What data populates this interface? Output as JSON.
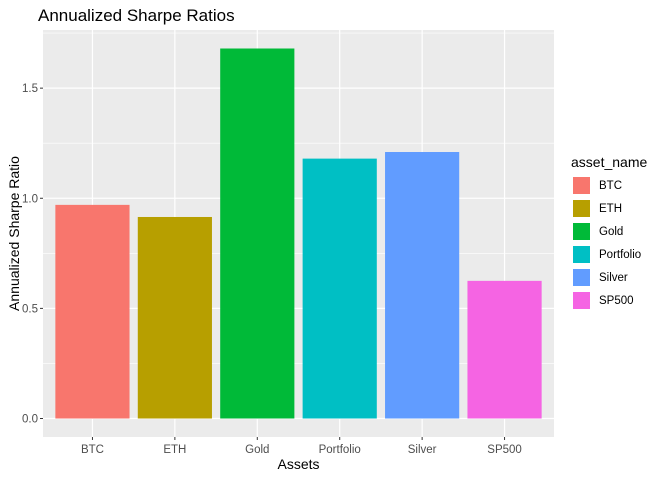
{
  "chart_data": {
    "type": "bar",
    "title": "Annualized Sharpe Ratios",
    "xlabel": "Assets",
    "ylabel": "Annualized Sharpe Ratio",
    "categories": [
      "BTC",
      "ETH",
      "Gold",
      "Portfolio",
      "Silver",
      "SP500"
    ],
    "values": [
      0.97,
      0.915,
      1.68,
      1.18,
      1.21,
      0.625
    ],
    "colors": [
      "#F8766D",
      "#B79F00",
      "#00BA38",
      "#00BFC4",
      "#619CFF",
      "#F564E3"
    ],
    "yticks": [
      "0.0",
      "0.5",
      "1.0",
      "1.5"
    ],
    "ylim": [
      -0.084,
      1.764
    ],
    "grid": true,
    "legend": {
      "title": "asset_name",
      "position": "right",
      "items": [
        "BTC",
        "ETH",
        "Gold",
        "Portfolio",
        "Silver",
        "SP500"
      ]
    }
  }
}
